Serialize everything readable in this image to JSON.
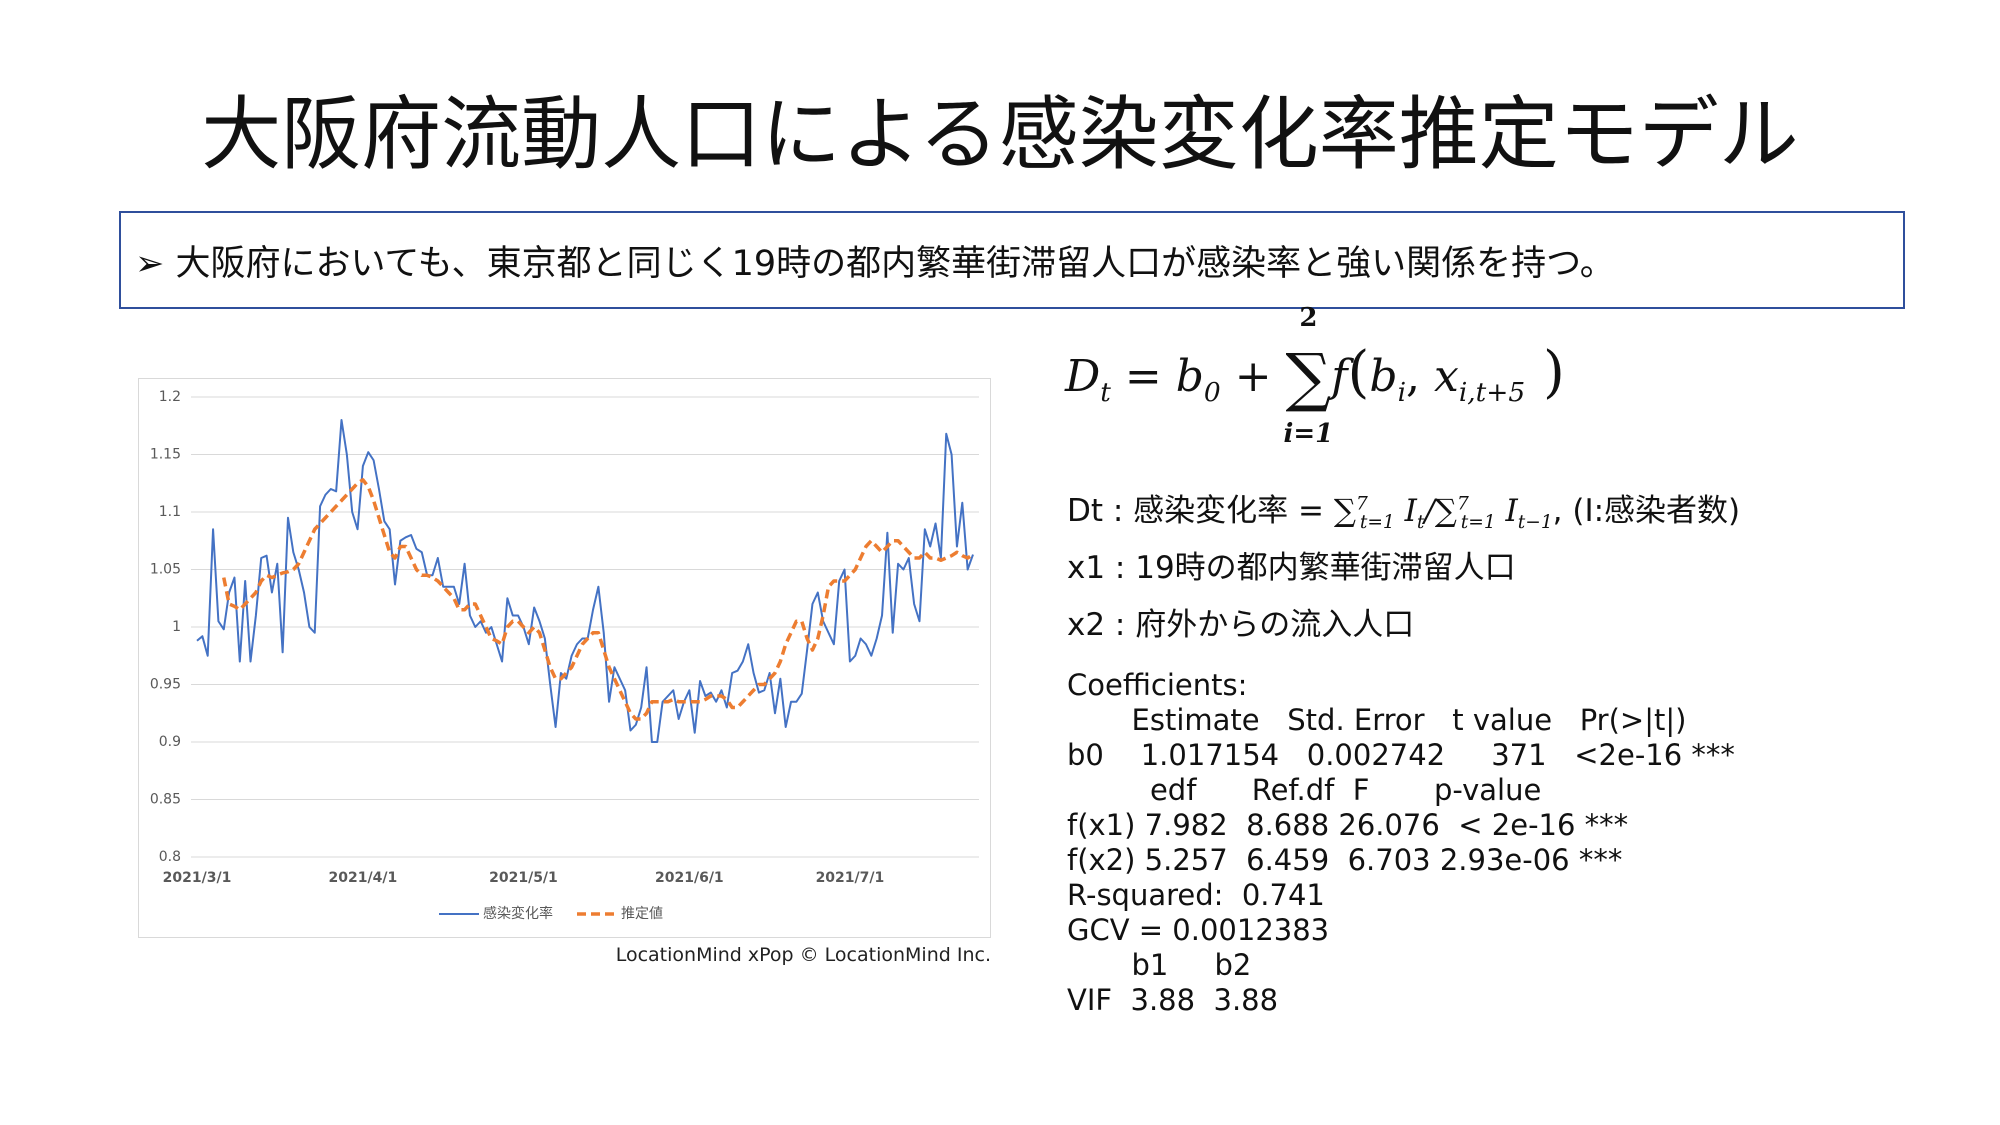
{
  "title": "大阪府流動人口による感染変化率推定モデル",
  "bullet": "大阪府においても、東京都と同じく19時の都内繁華街滞留人口が感染率と強い関係を持つ。",
  "formula": {
    "D": "D",
    "t": "t",
    "eq": " = ",
    "b": "b",
    "b_sub": "0",
    "plus": " + ",
    "sum": "∑",
    "sum_top": "2",
    "sum_bottom": "i=1",
    "f": "f",
    "open": "(",
    "bi": "b",
    "bi_sub": "i",
    "comma": ", ",
    "x": "x",
    "x_sub": "i,t+5",
    "close": " )"
  },
  "definitions": {
    "dt_label": "Dt : 感染変化率 = ",
    "sum1": "∑",
    "sum1_top": "7",
    "sum1_bottom": "t=1",
    "I1": "I",
    "I1_sub": "t",
    "slash": "/",
    "sum2": "∑",
    "sum2_top": "7",
    "sum2_bottom": "t=1",
    "I2": "I",
    "I2_sub": "t−1",
    "tail": ", (I:感染者数)",
    "x1": "x1 : 19時の都内繁華街滞留人口",
    "x2": "x2 : 府外からの流入人口"
  },
  "coefficients": [
    "Coefficients:",
    "       Estimate   Std. Error   t value   Pr(>|t|)",
    "b0    1.017154   0.002742     371   <2e-16 ***",
    "         edf      Ref.df  F       p-value",
    "f(x1) 7.982  8.688 26.076  < 2e-16 ***",
    "f(x2) 5.257  6.459  6.703 2.93e-06 ***",
    "R-squared:  0.741",
    "GCV = 0.0012383",
    "       b1     b2",
    "VIF  3.88  3.88"
  ],
  "credit": "LocationMind xPop © LocationMind Inc.",
  "chart_data": {
    "type": "line",
    "categories": [
      "2021/3/1",
      null,
      null,
      null,
      null,
      null,
      null,
      null,
      null,
      null,
      null,
      null,
      null,
      null,
      null,
      null,
      null,
      null,
      null,
      null,
      null,
      null,
      null,
      null,
      null,
      null,
      null,
      null,
      null,
      null,
      null,
      "2021/4/1",
      null,
      null,
      null,
      null,
      null,
      null,
      null,
      null,
      null,
      null,
      null,
      null,
      null,
      null,
      null,
      null,
      null,
      null,
      null,
      null,
      null,
      null,
      null,
      null,
      null,
      null,
      null,
      null,
      null,
      "2021/5/1",
      null,
      null,
      null,
      null,
      null,
      null,
      null,
      null,
      null,
      null,
      null,
      null,
      null,
      null,
      null,
      null,
      null,
      null,
      null,
      null,
      null,
      null,
      null,
      null,
      null,
      null,
      null,
      null,
      null,
      null,
      "2021/6/1",
      null,
      null,
      null,
      null,
      null,
      null,
      null,
      null,
      null,
      null,
      null,
      null,
      null,
      null,
      null,
      null,
      null,
      null,
      null,
      null,
      null,
      null,
      null,
      null,
      null,
      null,
      null,
      null,
      null,
      "2021/7/1",
      null,
      null,
      null,
      null,
      null,
      null,
      null,
      null,
      null,
      null,
      null,
      null,
      null,
      null,
      null,
      null,
      null,
      null,
      null,
      null,
      null,
      null,
      null
    ],
    "series": [
      {
        "name": "感染変化率",
        "color": "#4472c4",
        "dash": false,
        "values": [
          0.988,
          0.992,
          0.975,
          1.085,
          1.005,
          0.998,
          1.03,
          1.043,
          0.97,
          1.04,
          0.97,
          1.01,
          1.06,
          1.062,
          1.03,
          1.055,
          0.978,
          1.095,
          1.065,
          1.05,
          1.03,
          1.0,
          0.995,
          1.105,
          1.115,
          1.12,
          1.118,
          1.18,
          1.15,
          1.1,
          1.085,
          1.14,
          1.152,
          1.145,
          1.12,
          1.092,
          1.085,
          1.037,
          1.075,
          1.078,
          1.08,
          1.068,
          1.065,
          1.045,
          1.045,
          1.06,
          1.035,
          1.035,
          1.035,
          1.02,
          1.055,
          1.01,
          1.0,
          1.005,
          0.995,
          1.0,
          0.985,
          0.97,
          1.025,
          1.01,
          1.01,
          1.0,
          0.985,
          1.017,
          1.005,
          0.99,
          0.95,
          0.913,
          0.96,
          0.955,
          0.975,
          0.985,
          0.99,
          0.99,
          1.015,
          1.035,
          0.995,
          0.935,
          0.965,
          0.955,
          0.945,
          0.91,
          0.915,
          0.93,
          0.965,
          0.9,
          0.9,
          0.935,
          0.94,
          0.945,
          0.92,
          0.935,
          0.945,
          0.908,
          0.953,
          0.94,
          0.943,
          0.935,
          0.945,
          0.93,
          0.96,
          0.962,
          0.97,
          0.985,
          0.96,
          0.943,
          0.945,
          0.96,
          0.925,
          0.955,
          0.913,
          0.935,
          0.935,
          0.942,
          0.98,
          1.02,
          1.03,
          1.005,
          0.995,
          0.985,
          1.04,
          1.05,
          0.97,
          0.975,
          0.99,
          0.985,
          0.975,
          0.99,
          1.01,
          1.082,
          0.995,
          1.055,
          1.05,
          1.06,
          1.02,
          1.005,
          1.085,
          1.07,
          1.09,
          1.06,
          1.168,
          1.15,
          1.07,
          1.108,
          1.05,
          1.063
        ]
      },
      {
        "name": "推定値",
        "color": "#ed7d31",
        "dash": true,
        "values": [
          null,
          null,
          null,
          null,
          null,
          1.043,
          1.02,
          1.018,
          1.015,
          1.02,
          1.025,
          1.03,
          1.04,
          1.045,
          1.043,
          1.045,
          1.047,
          1.048,
          1.05,
          1.055,
          1.065,
          1.075,
          1.085,
          1.09,
          1.095,
          1.1,
          1.105,
          1.11,
          1.115,
          1.12,
          1.125,
          1.128,
          1.122,
          1.11,
          1.095,
          1.08,
          1.065,
          1.06,
          1.07,
          1.07,
          1.06,
          1.05,
          1.045,
          1.045,
          1.043,
          1.04,
          1.035,
          1.03,
          1.025,
          1.015,
          1.015,
          1.02,
          1.02,
          1.01,
          1.0,
          0.99,
          0.988,
          0.985,
          1.0,
          1.005,
          1.005,
          1.0,
          0.995,
          1.0,
          0.995,
          0.98,
          0.965,
          0.955,
          0.955,
          0.96,
          0.965,
          0.975,
          0.985,
          0.99,
          0.995,
          0.995,
          0.98,
          0.965,
          0.955,
          0.945,
          0.935,
          0.925,
          0.92,
          0.92,
          0.925,
          0.935,
          0.935,
          0.935,
          0.935,
          0.937,
          0.935,
          0.935,
          0.935,
          0.935,
          0.935,
          0.937,
          0.94,
          0.94,
          0.94,
          0.937,
          0.93,
          0.93,
          0.935,
          0.94,
          0.945,
          0.95,
          0.95,
          0.955,
          0.96,
          0.97,
          0.985,
          0.995,
          1.005,
          1.005,
          0.99,
          0.98,
          0.99,
          1.01,
          1.035,
          1.04,
          1.04,
          1.04,
          1.045,
          1.05,
          1.06,
          1.07,
          1.075,
          1.07,
          1.065,
          1.07,
          1.075,
          1.075,
          1.07,
          1.065,
          1.06,
          1.06,
          1.065,
          1.06,
          1.06,
          1.058,
          1.06,
          1.062,
          1.065,
          1.062,
          1.06,
          1.063
        ]
      }
    ],
    "ylim": [
      0.8,
      1.2
    ],
    "yticks": [
      0.8,
      0.85,
      0.9,
      0.95,
      1,
      1.05,
      1.1,
      1.15,
      1.2
    ],
    "grid": true,
    "legend": "bottom"
  }
}
